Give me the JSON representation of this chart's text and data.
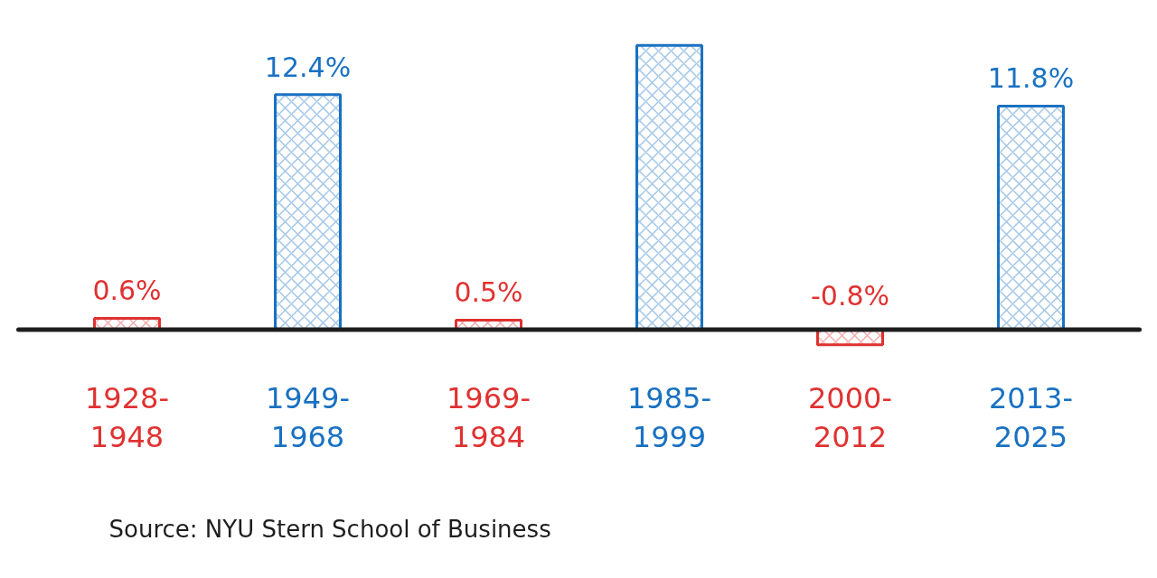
{
  "chart_data": {
    "type": "bar",
    "categories": [
      "1928-1948",
      "1949-1968",
      "1969-1984",
      "1985-1999",
      "2000-2012",
      "2013-2025"
    ],
    "values": [
      0.6,
      12.4,
      0.5,
      15.0,
      -0.8,
      11.8
    ],
    "value_labels": [
      "0.6%",
      "12.4%",
      "0.5%",
      null,
      "-0.8%",
      "11.8%"
    ],
    "colors": [
      "#e03131",
      "#1971c2",
      "#e03131",
      "#1971c2",
      "#e03131",
      "#1971c2"
    ],
    "annotations": [
      "Source: NYU Stern School of Business"
    ]
  }
}
